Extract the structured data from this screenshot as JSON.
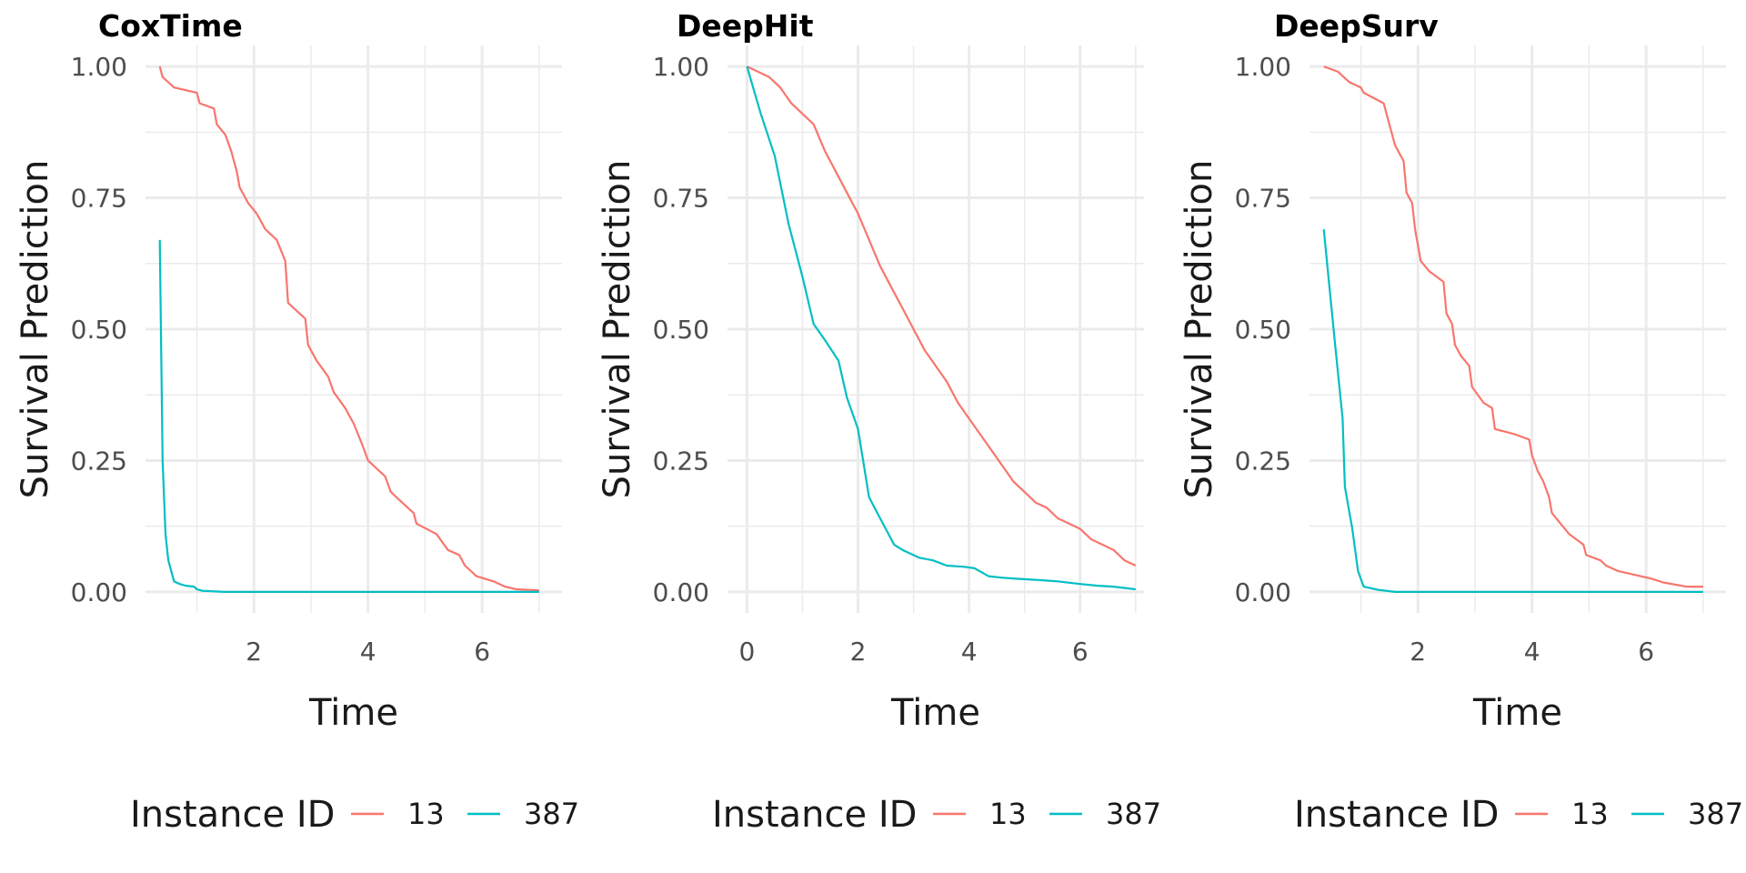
{
  "chart_data": [
    {
      "type": "line",
      "title": "CoxTime",
      "xlabel": "Time",
      "ylabel": "Survival Prediction",
      "xlim": [
        0.1,
        7.4
      ],
      "ylim": [
        -0.04,
        1.04
      ],
      "xticks": [
        2,
        4,
        6
      ],
      "xtick_labels": [
        "2",
        "4",
        "6"
      ],
      "yticks": [
        0,
        0.25,
        0.5,
        0.75,
        1
      ],
      "ytick_labels": [
        "0.00",
        "0.25",
        "0.50",
        "0.75",
        "1.00"
      ],
      "grid": true,
      "legend": {
        "title": "Instance ID",
        "position": "bottom"
      },
      "series": [
        {
          "name": "13",
          "color": "#F8766D",
          "points": [
            [
              0.35,
              1.0
            ],
            [
              0.4,
              0.98
            ],
            [
              0.5,
              0.97
            ],
            [
              0.6,
              0.96
            ],
            [
              1.0,
              0.95
            ],
            [
              1.05,
              0.93
            ],
            [
              1.3,
              0.92
            ],
            [
              1.35,
              0.89
            ],
            [
              1.5,
              0.87
            ],
            [
              1.6,
              0.84
            ],
            [
              1.7,
              0.8
            ],
            [
              1.75,
              0.77
            ],
            [
              1.9,
              0.74
            ],
            [
              2.05,
              0.72
            ],
            [
              2.2,
              0.69
            ],
            [
              2.4,
              0.67
            ],
            [
              2.55,
              0.63
            ],
            [
              2.6,
              0.55
            ],
            [
              2.8,
              0.53
            ],
            [
              2.9,
              0.52
            ],
            [
              2.95,
              0.47
            ],
            [
              3.1,
              0.44
            ],
            [
              3.3,
              0.41
            ],
            [
              3.4,
              0.38
            ],
            [
              3.6,
              0.35
            ],
            [
              3.75,
              0.32
            ],
            [
              3.9,
              0.28
            ],
            [
              4.0,
              0.25
            ],
            [
              4.3,
              0.22
            ],
            [
              4.4,
              0.19
            ],
            [
              4.6,
              0.17
            ],
            [
              4.8,
              0.15
            ],
            [
              4.85,
              0.13
            ],
            [
              5.2,
              0.11
            ],
            [
              5.4,
              0.08
            ],
            [
              5.6,
              0.07
            ],
            [
              5.7,
              0.05
            ],
            [
              5.9,
              0.03
            ],
            [
              6.2,
              0.02
            ],
            [
              6.4,
              0.01
            ],
            [
              6.6,
              0.005
            ],
            [
              7.0,
              0.003
            ]
          ]
        },
        {
          "name": "387",
          "color": "#00BFC4",
          "points": [
            [
              0.35,
              0.67
            ],
            [
              0.4,
              0.25
            ],
            [
              0.45,
              0.11
            ],
            [
              0.5,
              0.06
            ],
            [
              0.6,
              0.02
            ],
            [
              0.7,
              0.015
            ],
            [
              0.8,
              0.012
            ],
            [
              0.95,
              0.01
            ],
            [
              1.0,
              0.005
            ],
            [
              1.1,
              0.002
            ],
            [
              1.5,
              0.0
            ],
            [
              7.0,
              0.0
            ]
          ]
        }
      ]
    },
    {
      "type": "line",
      "title": "DeepHit",
      "xlabel": "Time",
      "ylabel": "Survival Prediction",
      "xlim": [
        -0.35,
        7.15
      ],
      "ylim": [
        -0.04,
        1.04
      ],
      "xticks": [
        0,
        2,
        4,
        6
      ],
      "xtick_labels": [
        "0",
        "2",
        "4",
        "6"
      ],
      "yticks": [
        0,
        0.25,
        0.5,
        0.75,
        1
      ],
      "ytick_labels": [
        "0.00",
        "0.25",
        "0.50",
        "0.75",
        "1.00"
      ],
      "grid": true,
      "legend": {
        "title": "Instance ID",
        "position": "bottom"
      },
      "series": [
        {
          "name": "13",
          "color": "#F8766D",
          "points": [
            [
              0,
              1.0
            ],
            [
              0.2,
              0.99
            ],
            [
              0.4,
              0.98
            ],
            [
              0.6,
              0.96
            ],
            [
              0.8,
              0.93
            ],
            [
              1.0,
              0.91
            ],
            [
              1.2,
              0.89
            ],
            [
              1.4,
              0.84
            ],
            [
              1.6,
              0.8
            ],
            [
              1.8,
              0.76
            ],
            [
              2.0,
              0.72
            ],
            [
              2.2,
              0.67
            ],
            [
              2.4,
              0.62
            ],
            [
              2.6,
              0.58
            ],
            [
              2.8,
              0.54
            ],
            [
              3.0,
              0.5
            ],
            [
              3.2,
              0.46
            ],
            [
              3.4,
              0.43
            ],
            [
              3.6,
              0.4
            ],
            [
              3.8,
              0.36
            ],
            [
              4.0,
              0.33
            ],
            [
              4.2,
              0.3
            ],
            [
              4.4,
              0.27
            ],
            [
              4.6,
              0.24
            ],
            [
              4.8,
              0.21
            ],
            [
              5.0,
              0.19
            ],
            [
              5.2,
              0.17
            ],
            [
              5.4,
              0.16
            ],
            [
              5.6,
              0.14
            ],
            [
              5.8,
              0.13
            ],
            [
              6.0,
              0.12
            ],
            [
              6.2,
              0.1
            ],
            [
              6.4,
              0.09
            ],
            [
              6.6,
              0.08
            ],
            [
              6.8,
              0.06
            ],
            [
              7.0,
              0.05
            ]
          ]
        },
        {
          "name": "387",
          "color": "#00BFC4",
          "points": [
            [
              0,
              1.0
            ],
            [
              0.25,
              0.91
            ],
            [
              0.5,
              0.83
            ],
            [
              0.75,
              0.7
            ],
            [
              1.0,
              0.6
            ],
            [
              1.2,
              0.51
            ],
            [
              1.4,
              0.48
            ],
            [
              1.65,
              0.44
            ],
            [
              1.8,
              0.37
            ],
            [
              2.0,
              0.31
            ],
            [
              2.2,
              0.18
            ],
            [
              2.4,
              0.14
            ],
            [
              2.65,
              0.09
            ],
            [
              2.8,
              0.08
            ],
            [
              3.1,
              0.065
            ],
            [
              3.35,
              0.06
            ],
            [
              3.6,
              0.05
            ],
            [
              3.9,
              0.048
            ],
            [
              4.1,
              0.045
            ],
            [
              4.35,
              0.03
            ],
            [
              4.6,
              0.027
            ],
            [
              4.85,
              0.025
            ],
            [
              5.2,
              0.023
            ],
            [
              5.6,
              0.02
            ],
            [
              6.0,
              0.015
            ],
            [
              6.3,
              0.012
            ],
            [
              6.6,
              0.01
            ],
            [
              7.0,
              0.005
            ]
          ]
        }
      ]
    },
    {
      "type": "line",
      "title": "DeepSurv",
      "xlabel": "Time",
      "ylabel": "Survival Prediction",
      "xlim": [
        0.1,
        7.4
      ],
      "ylim": [
        -0.04,
        1.04
      ],
      "xticks": [
        2,
        4,
        6
      ],
      "xtick_labels": [
        "2",
        "4",
        "6"
      ],
      "yticks": [
        0,
        0.25,
        0.5,
        0.75,
        1
      ],
      "ytick_labels": [
        "0.00",
        "0.25",
        "0.50",
        "0.75",
        "1.00"
      ],
      "grid": true,
      "legend": {
        "title": "Instance ID",
        "position": "bottom"
      },
      "series": [
        {
          "name": "13",
          "color": "#F8766D",
          "points": [
            [
              0.35,
              1.0
            ],
            [
              0.6,
              0.99
            ],
            [
              0.7,
              0.98
            ],
            [
              0.8,
              0.97
            ],
            [
              1.0,
              0.96
            ],
            [
              1.05,
              0.95
            ],
            [
              1.4,
              0.93
            ],
            [
              1.5,
              0.89
            ],
            [
              1.6,
              0.85
            ],
            [
              1.75,
              0.82
            ],
            [
              1.8,
              0.76
            ],
            [
              1.9,
              0.74
            ],
            [
              1.95,
              0.69
            ],
            [
              2.05,
              0.63
            ],
            [
              2.2,
              0.61
            ],
            [
              2.45,
              0.59
            ],
            [
              2.5,
              0.53
            ],
            [
              2.6,
              0.51
            ],
            [
              2.65,
              0.47
            ],
            [
              2.75,
              0.45
            ],
            [
              2.9,
              0.43
            ],
            [
              2.95,
              0.39
            ],
            [
              3.15,
              0.36
            ],
            [
              3.3,
              0.35
            ],
            [
              3.35,
              0.31
            ],
            [
              3.7,
              0.3
            ],
            [
              3.95,
              0.29
            ],
            [
              4.0,
              0.26
            ],
            [
              4.1,
              0.23
            ],
            [
              4.2,
              0.21
            ],
            [
              4.3,
              0.18
            ],
            [
              4.35,
              0.15
            ],
            [
              4.5,
              0.13
            ],
            [
              4.65,
              0.11
            ],
            [
              4.9,
              0.09
            ],
            [
              4.95,
              0.07
            ],
            [
              5.2,
              0.06
            ],
            [
              5.3,
              0.05
            ],
            [
              5.5,
              0.04
            ],
            [
              5.9,
              0.03
            ],
            [
              6.1,
              0.025
            ],
            [
              6.3,
              0.018
            ],
            [
              6.7,
              0.01
            ],
            [
              7.0,
              0.01
            ]
          ]
        },
        {
          "name": "387",
          "color": "#00BFC4",
          "points": [
            [
              0.35,
              0.69
            ],
            [
              0.55,
              0.47
            ],
            [
              0.68,
              0.33
            ],
            [
              0.72,
              0.2
            ],
            [
              0.85,
              0.12
            ],
            [
              0.95,
              0.04
            ],
            [
              1.05,
              0.01
            ],
            [
              1.3,
              0.004
            ],
            [
              1.6,
              0.0
            ],
            [
              7.0,
              0.0
            ]
          ]
        }
      ]
    }
  ]
}
